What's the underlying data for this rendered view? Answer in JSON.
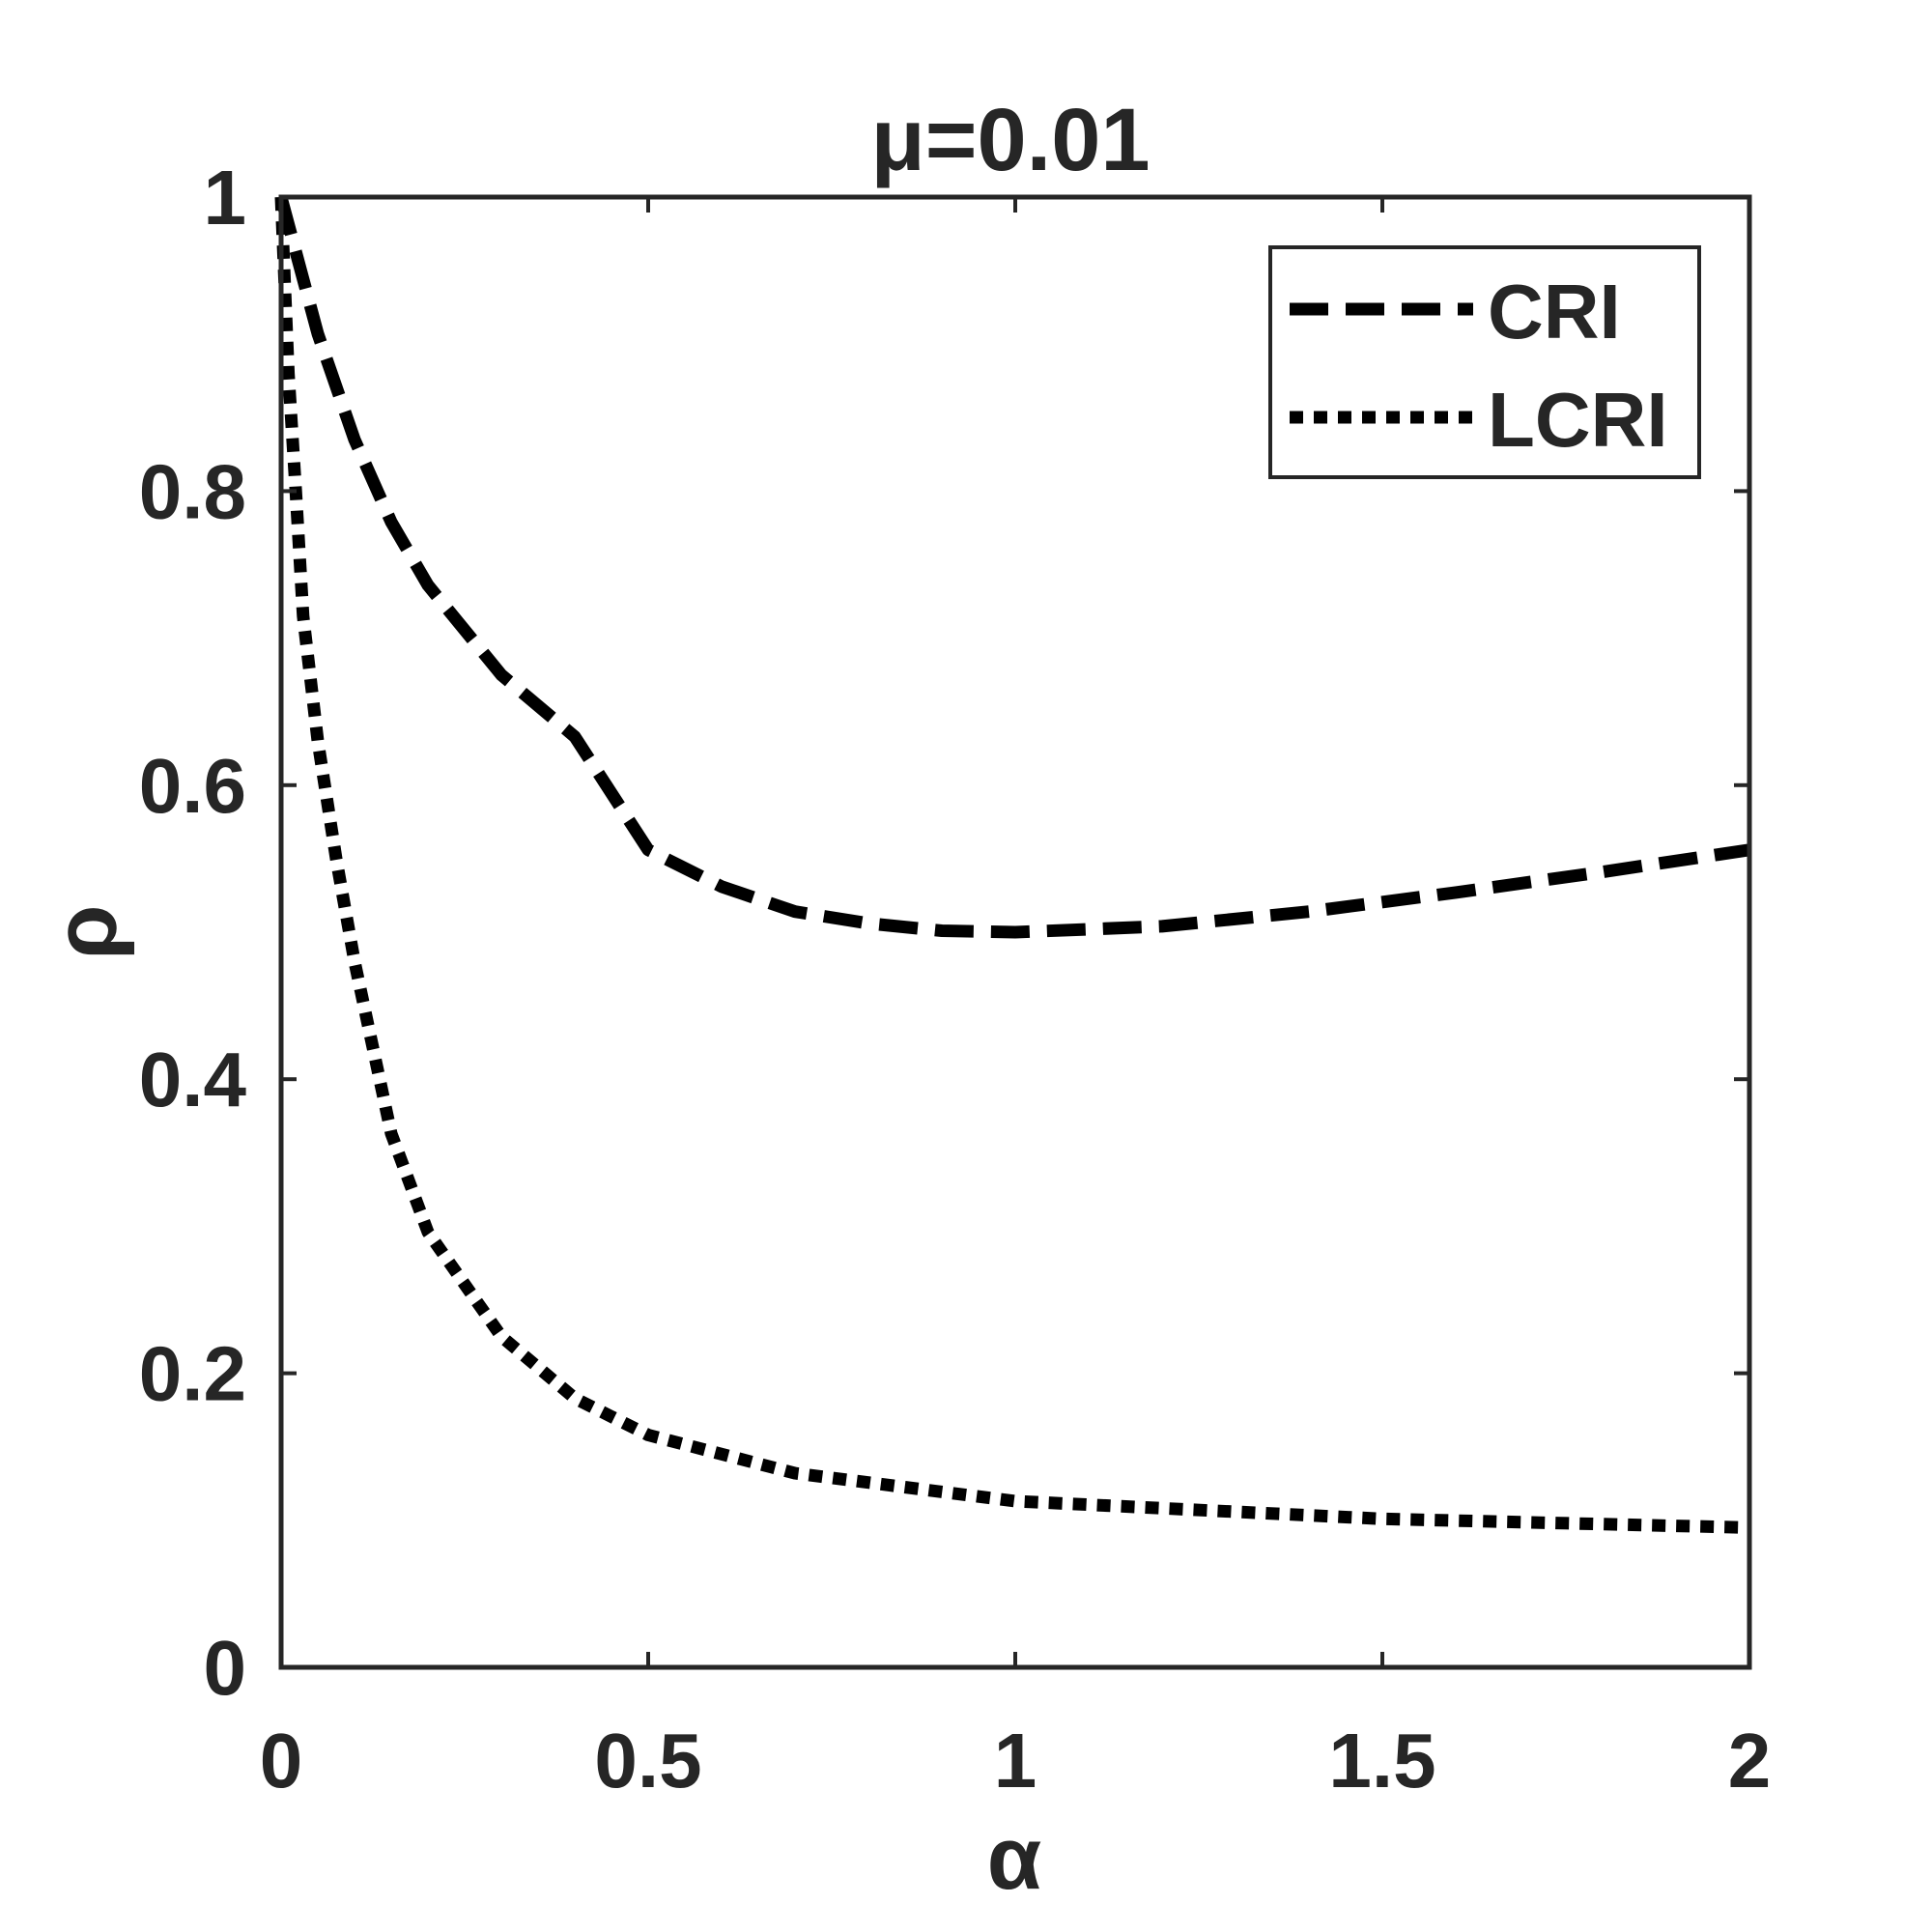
{
  "chart_data": {
    "type": "line",
    "title": "μ=0.01",
    "xlabel": "α",
    "ylabel": "ρ",
    "xlim": [
      0,
      2
    ],
    "ylim": [
      0,
      1
    ],
    "xticks": [
      "0",
      "0.5",
      "1",
      "1.5",
      "2"
    ],
    "yticks": [
      "0",
      "0.2",
      "0.4",
      "0.6",
      "0.8",
      "1"
    ],
    "grid": false,
    "legend_position": "top-right",
    "series": [
      {
        "name": "CRI",
        "style": "dashed",
        "color": "#000000",
        "x": [
          0,
          0.05,
          0.1,
          0.15,
          0.2,
          0.3,
          0.4,
          0.5,
          0.6,
          0.7,
          0.8,
          0.9,
          1.0,
          1.2,
          1.4,
          1.6,
          1.8,
          2.0
        ],
        "y": [
          1.0,
          0.907,
          0.835,
          0.779,
          0.736,
          0.675,
          0.633,
          0.556,
          0.531,
          0.514,
          0.506,
          0.501,
          0.5,
          0.504,
          0.514,
          0.527,
          0.541,
          0.556
        ]
      },
      {
        "name": "LCRI",
        "style": "dotted",
        "color": "#000000",
        "x": [
          0,
          0.01,
          0.02,
          0.03,
          0.05,
          0.075,
          0.1,
          0.15,
          0.2,
          0.3,
          0.4,
          0.5,
          0.7,
          1.0,
          1.5,
          2.0
        ],
        "y": [
          1.0,
          0.88,
          0.8,
          0.715,
          0.63,
          0.55,
          0.48,
          0.363,
          0.296,
          0.225,
          0.183,
          0.158,
          0.132,
          0.113,
          0.101,
          0.095
        ]
      }
    ]
  }
}
